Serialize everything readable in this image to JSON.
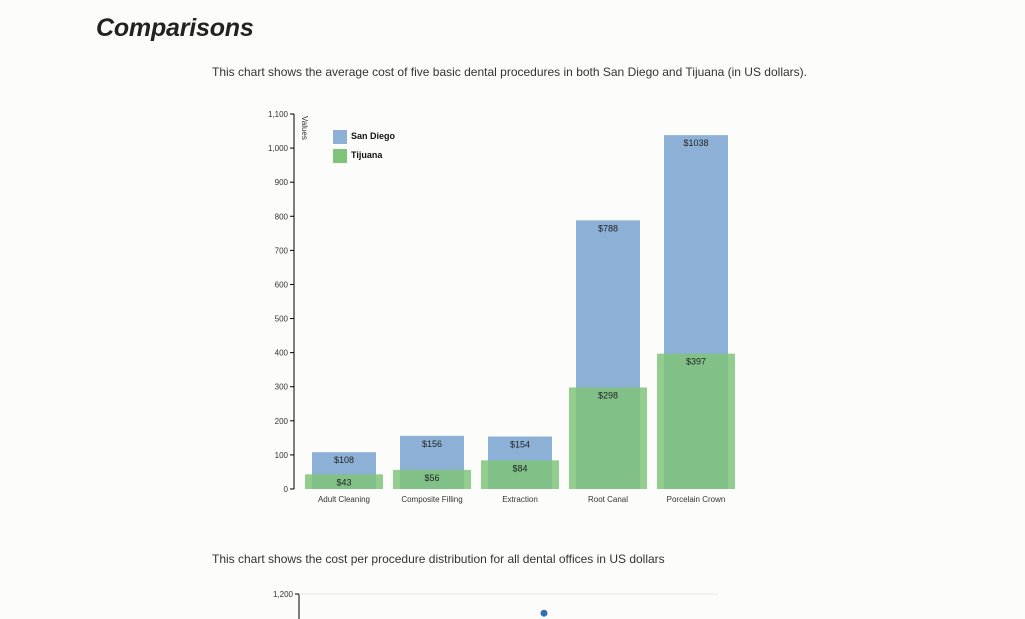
{
  "page": {
    "title": "Comparisons",
    "desc1": "This chart shows the average cost of five basic dental procedures in both San Diego and Tijuana (in US dollars).",
    "desc2": "This chart shows the cost per procedure distribution for all dental offices in US dollars"
  },
  "chart_data": [
    {
      "type": "bar",
      "title": "",
      "xlabel": "",
      "ylabel": "Values",
      "ylim": [
        0,
        1100
      ],
      "yticks": [
        "0",
        "100",
        "200",
        "300",
        "400",
        "500",
        "600",
        "700",
        "800",
        "900",
        "1,000",
        "1,100"
      ],
      "categories": [
        "Adult Cleaning",
        "Composite Filling",
        "Extraction",
        "Root Canal",
        "Porcelain Crown"
      ],
      "series": [
        {
          "name": "San Diego",
          "values": [
            108,
            156,
            154,
            788,
            1038
          ],
          "labels": [
            "$108",
            "$156",
            "$154",
            "$788",
            "$1038"
          ],
          "color": "#8db1d6"
        },
        {
          "name": "Tijuana",
          "values": [
            43,
            56,
            84,
            298,
            397
          ],
          "labels": [
            "$43",
            "$56",
            "$84",
            "$298",
            "$397"
          ],
          "color": "#7fc47a"
        }
      ],
      "legend": "top-left",
      "grid": false
    },
    {
      "type": "scatter",
      "yticks": [
        "1,200"
      ],
      "points": [
        {
          "y": 1140
        }
      ],
      "point_color": "#2f6fb5"
    }
  ]
}
